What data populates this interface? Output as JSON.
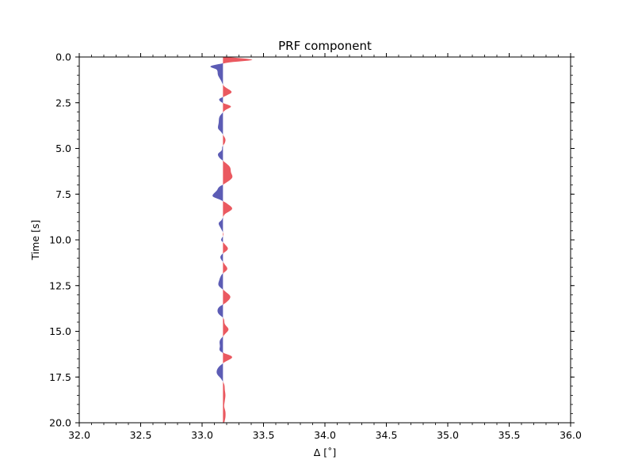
{
  "chart_data": {
    "type": "area",
    "title": "PRF component",
    "xlabel": "Δ [˚]",
    "ylabel": "Time [s]",
    "xlim": [
      32.0,
      36.0
    ],
    "ylim": [
      20.0,
      0.0
    ],
    "y_inverted": true,
    "x_ticks": [
      "32.0",
      "32.5",
      "33.0",
      "33.5",
      "34.0",
      "34.5",
      "35.0",
      "35.5",
      "36.0"
    ],
    "y_ticks": [
      "0.0",
      "2.5",
      "5.0",
      "7.5",
      "10.0",
      "12.5",
      "15.0",
      "17.5",
      "20.0"
    ],
    "grid": false,
    "baseline_x": 33.17,
    "trace_scale_deg": 0.05,
    "positive_color": "#e8474f",
    "negative_color": "#4a4aad",
    "series": [
      {
        "time": [
          0.0,
          0.15,
          0.3,
          0.5,
          0.7,
          1.0,
          1.3,
          1.6,
          1.9,
          2.1,
          2.3,
          2.5,
          2.7,
          2.9,
          3.1,
          3.3,
          3.6,
          3.9,
          4.1,
          4.3,
          4.5,
          4.7,
          4.9,
          5.1,
          5.3,
          5.5,
          5.7,
          6.0,
          6.3,
          6.6,
          6.9,
          7.1,
          7.3,
          7.6,
          7.8,
          8.0,
          8.3,
          8.6,
          8.9,
          9.1,
          9.4,
          9.7,
          10.0,
          10.2,
          10.5,
          10.8,
          11.0,
          11.3,
          11.6,
          11.9,
          12.2,
          12.5,
          12.8,
          13.1,
          13.4,
          13.7,
          14.0,
          14.3,
          14.6,
          14.9,
          15.2,
          15.5,
          15.8,
          16.1,
          16.4,
          16.7,
          17.0,
          17.3,
          17.6,
          17.9,
          18.2,
          18.5,
          18.8,
          19.1,
          19.4,
          19.7,
          20.0
        ],
        "amplitude": [
          0.5,
          4.8,
          1.0,
          -2.0,
          -1.0,
          -0.8,
          -0.3,
          0.2,
          1.4,
          0.6,
          -0.6,
          -0.1,
          1.3,
          0.4,
          -0.2,
          -0.6,
          -0.7,
          -0.8,
          -0.3,
          0.1,
          0.4,
          0.3,
          -0.1,
          -0.2,
          -0.8,
          -0.6,
          0.1,
          1.1,
          1.3,
          1.5,
          0.4,
          -0.6,
          -1.0,
          -1.7,
          -0.5,
          0.6,
          1.5,
          0.3,
          -0.2,
          -0.7,
          -0.3,
          0.1,
          -0.3,
          0.2,
          0.8,
          -0.2,
          -0.4,
          0.2,
          0.7,
          -0.2,
          -0.6,
          -0.7,
          0.3,
          1.2,
          0.6,
          -0.7,
          -0.8,
          0.1,
          0.3,
          0.9,
          0.2,
          -0.5,
          -0.5,
          -0.4,
          1.5,
          0.2,
          -0.8,
          -1.0,
          -0.3,
          0.2,
          0.3,
          0.4,
          0.3,
          0.2,
          0.4,
          0.4,
          0.2
        ]
      }
    ]
  }
}
